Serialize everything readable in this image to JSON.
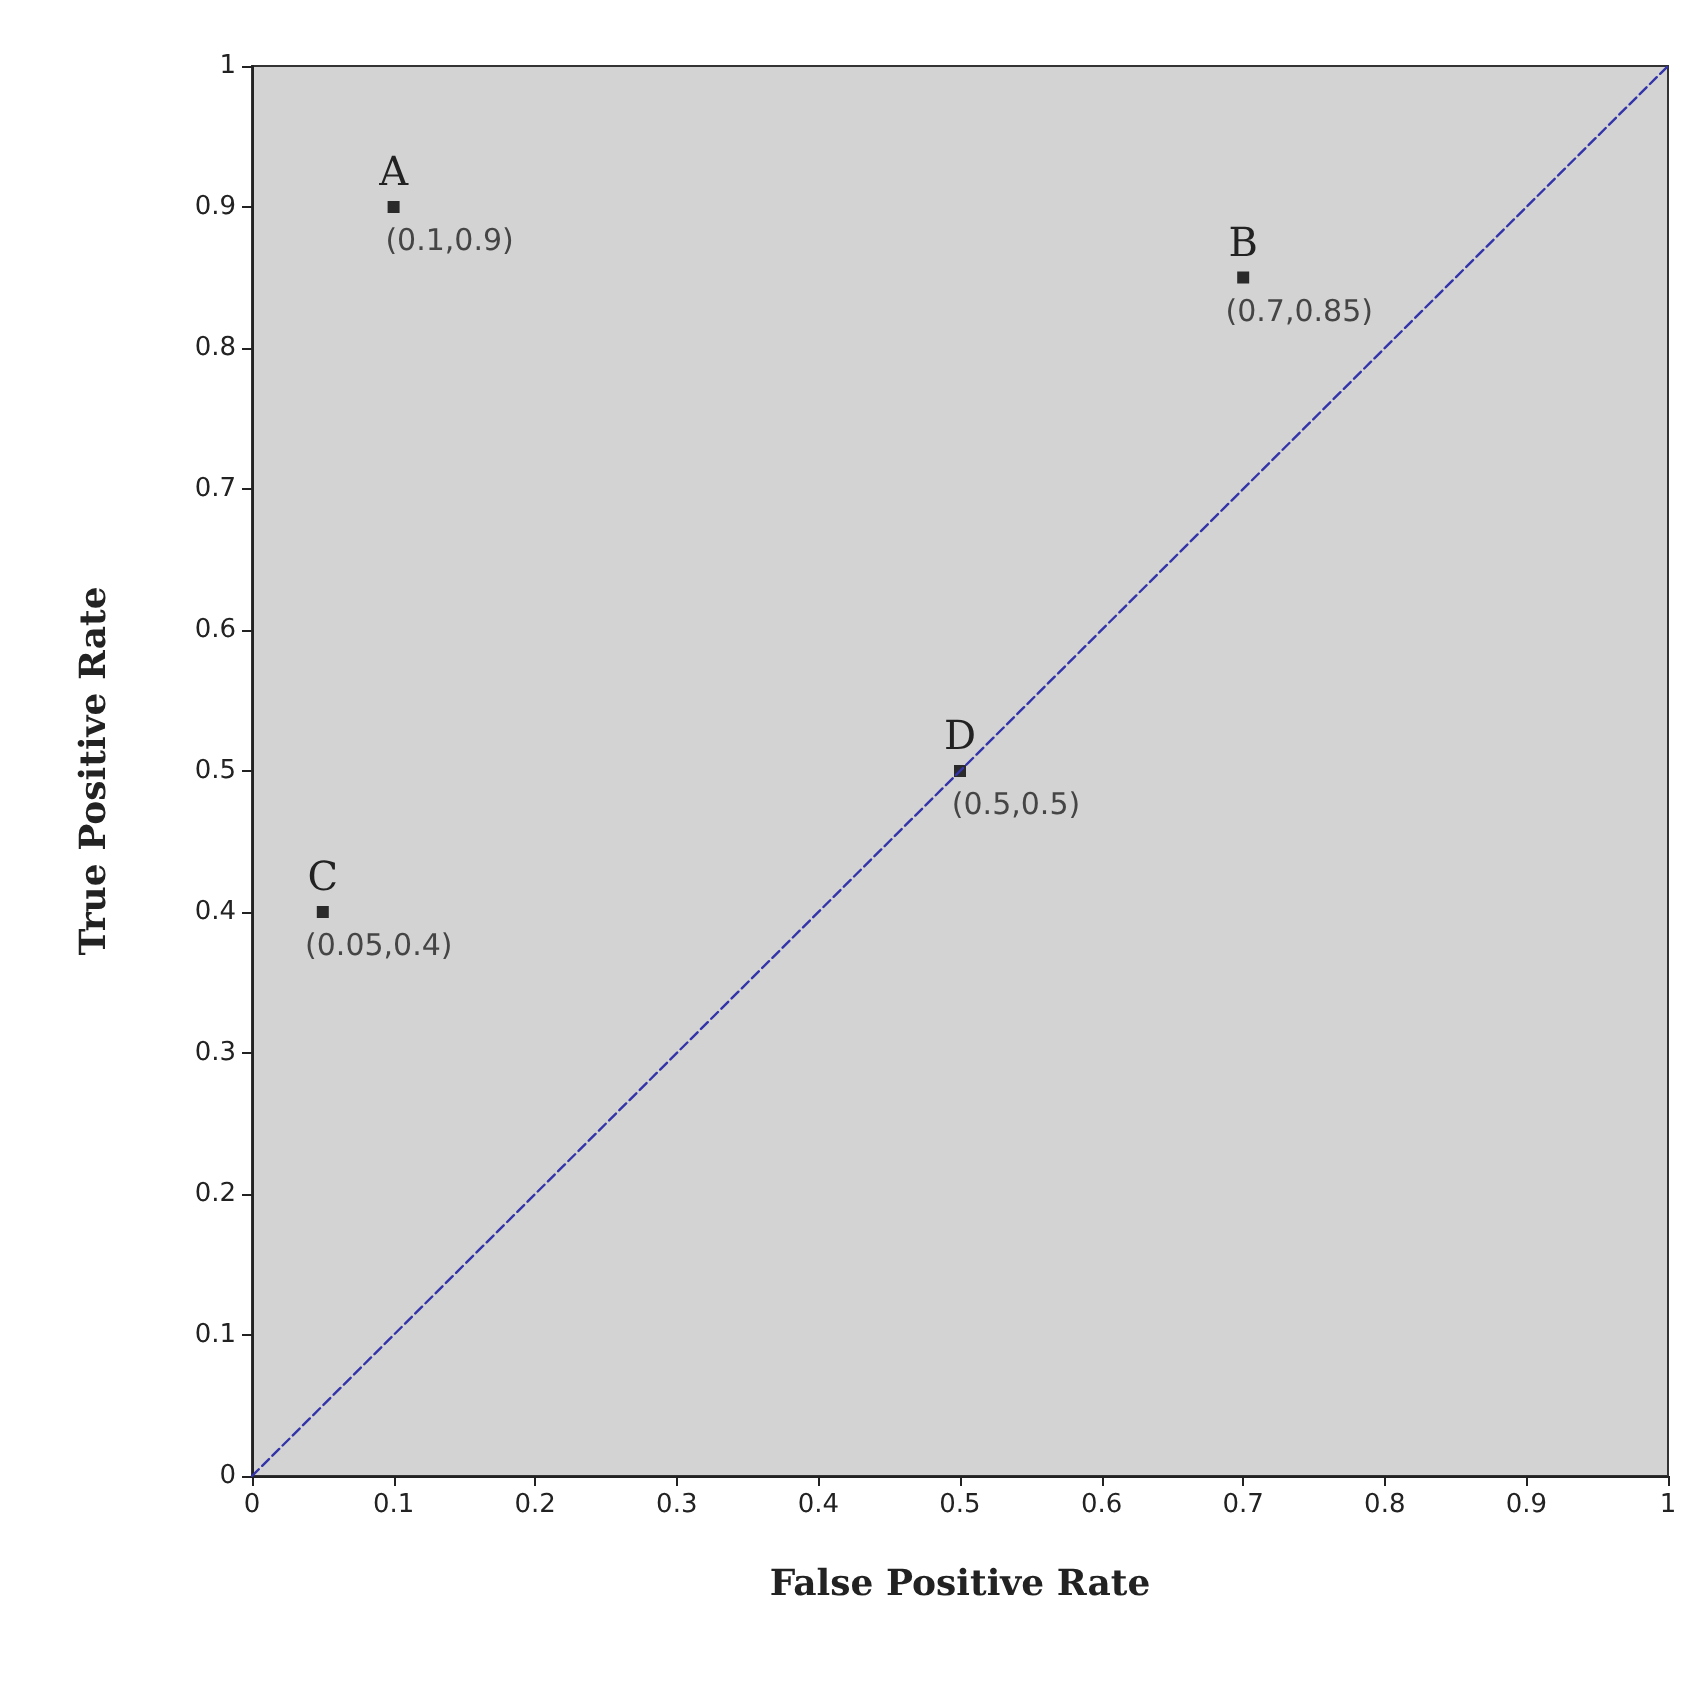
{
  "chart_data": {
    "type": "scatter",
    "xlabel": "False Positive Rate",
    "ylabel": "True Positive Rate",
    "xlim": [
      0,
      1
    ],
    "ylim": [
      0,
      1
    ],
    "xticks": [
      0,
      0.1,
      0.2,
      0.3,
      0.4,
      0.5,
      0.6,
      0.7,
      0.8,
      0.9,
      1
    ],
    "yticks": [
      0,
      0.1,
      0.2,
      0.3,
      0.4,
      0.5,
      0.6,
      0.7,
      0.8,
      0.9,
      1
    ],
    "grid": false,
    "series": [
      {
        "color": "#000000",
        "marker": "square",
        "x": [
          0.1,
          0.7,
          0.05,
          0.5
        ],
        "values": [
          0.9,
          0.85,
          0.4,
          0.5
        ],
        "value_labels": [
          "(0.1,0.9)",
          "(0.7,0.85)",
          "(0.05,0.4)",
          "(0.5,0.5)"
        ]
      },
      {
        "type": "line",
        "color": "#3333aa",
        "marker": "none",
        "line_style": "dashed",
        "x": [
          0,
          1
        ],
        "values": [
          0,
          1
        ]
      }
    ],
    "annotations": [
      {
        "text": "A",
        "x": 0.1,
        "y": 0.9
      },
      {
        "text": "B",
        "x": 0.7,
        "y": 0.85
      },
      {
        "text": "C",
        "x": 0.05,
        "y": 0.4
      },
      {
        "text": "D",
        "x": 0.5,
        "y": 0.5
      }
    ]
  }
}
